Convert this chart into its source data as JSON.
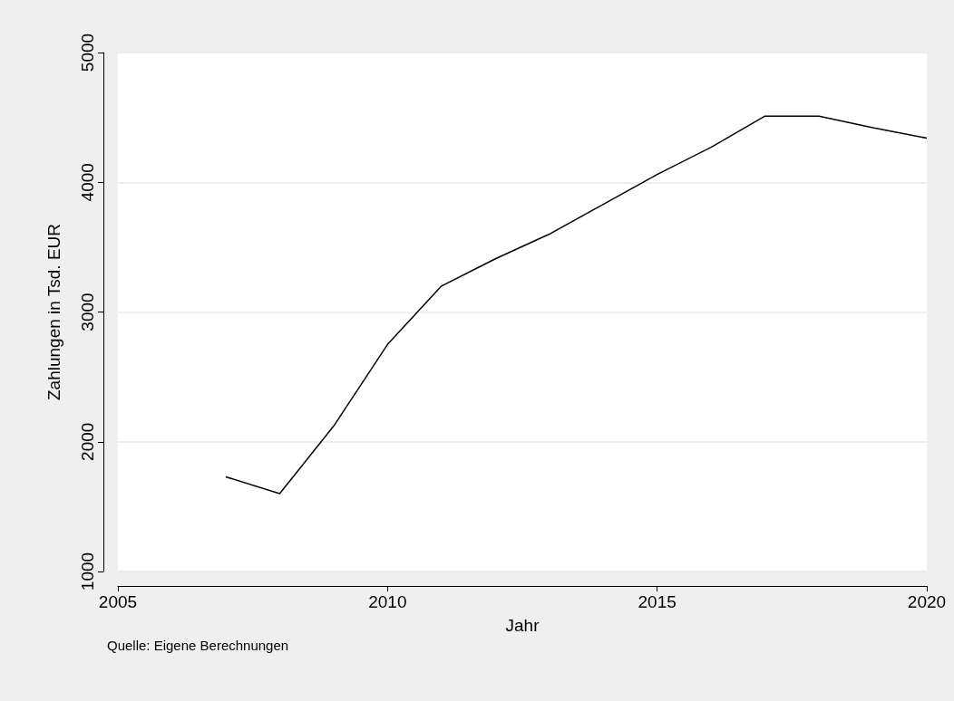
{
  "chart_data": {
    "type": "line",
    "xlabel": "Jahr",
    "ylabel": "Zahlungen in Tsd. EUR",
    "x": [
      2007,
      2008,
      2009,
      2010,
      2011,
      2012,
      2013,
      2014,
      2015,
      2016,
      2017,
      2018,
      2019,
      2020
    ],
    "series": [
      {
        "color": "#000000",
        "values": [
          1730,
          1600,
          2120,
          2750,
          3200,
          3410,
          3600,
          3830,
          4060,
          4270,
          4510,
          4510,
          4420,
          4340
        ]
      }
    ],
    "xlim": [
      2005,
      2020
    ],
    "xticks": [
      2005,
      2010,
      2015,
      2020
    ],
    "ylim": [
      1000,
      5000
    ],
    "yticks": [
      1000,
      2000,
      3000,
      4000,
      5000
    ],
    "grid": "y",
    "marker": "none",
    "line_style": "solid",
    "annotations": [
      "Quelle: Eigene Berechnungen"
    ]
  }
}
